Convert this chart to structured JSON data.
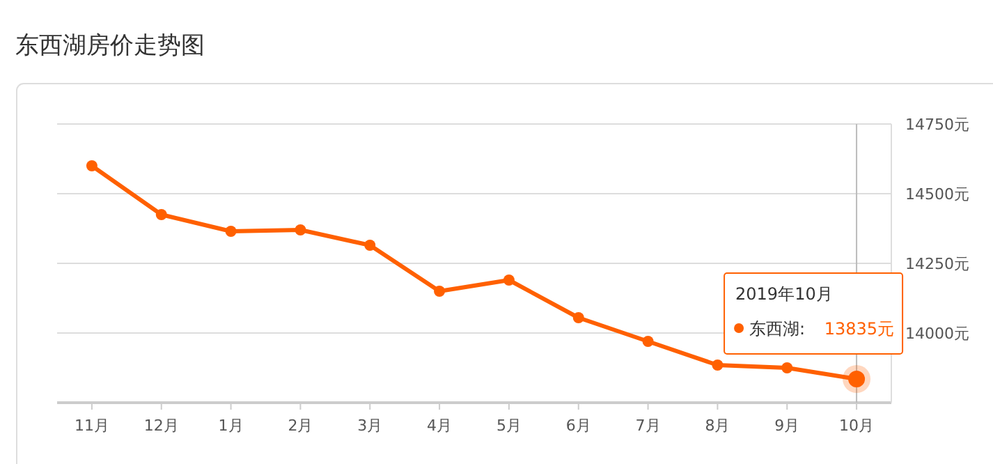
{
  "chart_data": {
    "type": "line",
    "title": "东西湖房价走势图",
    "categories": [
      "11月",
      "12月",
      "1月",
      "2月",
      "3月",
      "4月",
      "5月",
      "6月",
      "7月",
      "8月",
      "9月",
      "10月"
    ],
    "series": [
      {
        "name": "东西湖:",
        "color": "#ff6000",
        "values": [
          14600,
          14425,
          14365,
          14370,
          14315,
          14150,
          14190,
          14055,
          13970,
          13885,
          13875,
          13835
        ],
        "value_labels": [
          null,
          null,
          null,
          null,
          null,
          null,
          null,
          null,
          null,
          null,
          null,
          "13835元"
        ]
      }
    ],
    "ylim": [
      13750,
      14750
    ],
    "yticks": [
      {
        "value": 13750,
        "label": null
      },
      {
        "value": 14000,
        "label": "14000元"
      },
      {
        "value": 14250,
        "label": "14250元"
      },
      {
        "value": 14500,
        "label": "14500元"
      },
      {
        "value": 14750,
        "label": "14750元"
      }
    ],
    "grid": "y",
    "marker": "circle",
    "line_style": "solid",
    "ref_lines": [
      {
        "axis": "x",
        "value": "10月",
        "color": "#bbbbbb"
      }
    ],
    "annotations": [
      "2019年10月"
    ]
  }
}
